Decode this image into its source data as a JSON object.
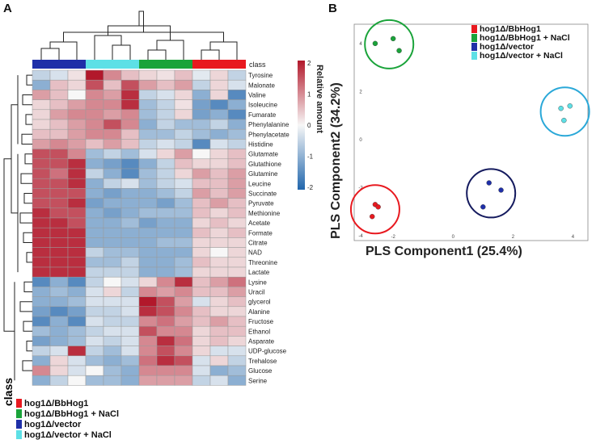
{
  "panels": {
    "a": "A",
    "b": "B"
  },
  "heatmap": {
    "class_row_label": "class",
    "colorbar": {
      "title": "Relative amount",
      "ticks": [
        "2",
        "1",
        "0",
        "-1",
        "-2"
      ]
    },
    "column_classes": [
      "hog1Δ/vector",
      "hog1Δ/vector",
      "hog1Δ/vector",
      "hog1Δ/vector + NaCl",
      "hog1Δ/vector + NaCl",
      "hog1Δ/vector + NaCl",
      "hog1Δ/BbHog1 + NaCl",
      "hog1Δ/BbHog1 + NaCl",
      "hog1Δ/BbHog1 + NaCl",
      "hog1Δ/BbHog1",
      "hog1Δ/BbHog1",
      "hog1Δ/BbHog1"
    ],
    "class_legend_title": "class"
  },
  "classes": [
    {
      "name": "hog1Δ/BbHog1",
      "color": "#e8191f"
    },
    {
      "name": "hog1Δ/BbHog1 + NaCl",
      "color": "#1aa33a"
    },
    {
      "name": "hog1Δ/vector",
      "color": "#1f2fa8"
    },
    {
      "name": "hog1Δ/vector + NaCl",
      "color": "#5de0e6"
    }
  ],
  "chart_data": [
    {
      "type": "heatmap",
      "title": "",
      "value_range": [
        -2,
        2
      ],
      "rows": [
        "Tyrosine",
        "Malonate",
        "Valine",
        "Isoleucine",
        "Fumarate",
        "Phenylalanine",
        "Phenylacetate",
        "Histidine",
        "Glutamate",
        "Glutathione",
        "Glutamine",
        "Leucine",
        "Succinate",
        "Pyruvate",
        "Methionine",
        "Acetate",
        "Formate",
        "Citrate",
        "NAD",
        "Threonine",
        "Lactate",
        "Lysine",
        "Uracil",
        "glycerol",
        "Alanine",
        "Fructose",
        "Ethanol",
        "Asparate",
        "UDP-glucose",
        "Trehalose",
        "Glucose",
        "Serine"
      ],
      "values": [
        [
          -0.5,
          -0.3,
          0.2,
          2.0,
          1.0,
          0.5,
          0.3,
          0.2,
          0.5,
          -0.2,
          0.3,
          -0.5
        ],
        [
          -1.0,
          0.5,
          0.3,
          1.5,
          0.5,
          1.5,
          0.8,
          0.5,
          0.8,
          -0.5,
          0.3,
          -0.3
        ],
        [
          0.8,
          0.5,
          0.0,
          1.0,
          0.8,
          1.8,
          -0.5,
          -0.3,
          0.3,
          -1.0,
          0.3,
          -1.5
        ],
        [
          0.3,
          0.5,
          0.8,
          1.0,
          1.0,
          1.8,
          -0.8,
          -0.5,
          0.2,
          -1.2,
          -1.5,
          -1.0
        ],
        [
          0.3,
          0.8,
          1.0,
          1.0,
          0.8,
          1.0,
          -0.8,
          -0.5,
          0.3,
          -1.2,
          -1.0,
          -1.5
        ],
        [
          0.3,
          0.5,
          0.8,
          1.0,
          1.5,
          1.0,
          -1.0,
          -0.5,
          -0.8,
          -0.8,
          -0.5,
          -1.0
        ],
        [
          0.5,
          0.5,
          0.8,
          1.0,
          1.0,
          0.5,
          -0.8,
          -0.8,
          -0.5,
          -0.8,
          -1.0,
          -0.8
        ],
        [
          0.8,
          1.0,
          0.8,
          0.5,
          0.8,
          0.5,
          -0.5,
          -0.3,
          -0.5,
          -1.5,
          -0.3,
          -0.5
        ],
        [
          1.5,
          1.5,
          1.0,
          -0.8,
          -0.5,
          -0.8,
          -0.3,
          0.3,
          0.8,
          0.0,
          0.3,
          0.5
        ],
        [
          1.5,
          1.5,
          1.8,
          -1.0,
          -1.2,
          -1.5,
          -1.0,
          -0.5,
          0.5,
          0.3,
          0.3,
          0.5
        ],
        [
          1.5,
          1.2,
          1.8,
          -0.5,
          -1.0,
          -1.5,
          -0.8,
          -0.5,
          0.3,
          0.8,
          0.5,
          0.8
        ],
        [
          1.5,
          1.5,
          1.8,
          -1.0,
          -0.5,
          -0.3,
          -0.8,
          -0.5,
          -0.3,
          0.5,
          0.5,
          0.8
        ],
        [
          1.5,
          1.5,
          1.5,
          -1.0,
          -1.2,
          -1.0,
          -1.0,
          -0.8,
          -0.5,
          0.8,
          0.5,
          0.8
        ],
        [
          1.5,
          1.5,
          1.8,
          -1.2,
          -1.0,
          -1.0,
          -1.0,
          -1.2,
          -0.8,
          0.5,
          0.8,
          0.5
        ],
        [
          1.8,
          1.5,
          1.5,
          -1.0,
          -1.2,
          -1.0,
          -0.8,
          -0.8,
          -0.8,
          0.5,
          0.3,
          0.5
        ],
        [
          1.8,
          1.8,
          1.5,
          -1.0,
          -1.0,
          -0.8,
          -1.2,
          -1.0,
          -1.0,
          0.3,
          0.5,
          0.3
        ],
        [
          1.8,
          1.8,
          1.8,
          -1.0,
          -1.0,
          -1.0,
          -1.0,
          -1.0,
          -1.0,
          0.5,
          0.3,
          0.5
        ],
        [
          1.8,
          1.8,
          1.8,
          -1.0,
          -1.0,
          -1.0,
          -1.0,
          -0.8,
          -0.8,
          0.3,
          0.3,
          0.3
        ],
        [
          1.8,
          1.8,
          1.8,
          -0.5,
          -0.8,
          -0.8,
          -1.0,
          -1.0,
          -1.0,
          0.3,
          0.0,
          0.3
        ],
        [
          1.8,
          1.8,
          1.8,
          -0.8,
          -0.8,
          -0.5,
          -1.0,
          -1.0,
          -0.8,
          0.5,
          0.3,
          0.3
        ],
        [
          1.8,
          1.8,
          1.8,
          -0.5,
          -0.5,
          -0.5,
          -1.0,
          -1.0,
          -0.8,
          0.3,
          0.3,
          0.3
        ],
        [
          -1.5,
          -1.0,
          -1.5,
          -0.5,
          0.0,
          -0.3,
          0.3,
          1.0,
          1.8,
          0.5,
          0.8,
          1.2
        ],
        [
          -1.0,
          -0.8,
          -1.0,
          -0.3,
          0.3,
          -0.5,
          1.0,
          0.8,
          1.0,
          0.5,
          0.5,
          0.8
        ],
        [
          -1.0,
          -1.0,
          -0.8,
          -0.3,
          -0.3,
          -0.3,
          2.0,
          1.5,
          0.8,
          -0.3,
          0.3,
          0.5
        ],
        [
          -1.2,
          -1.5,
          -1.2,
          -0.5,
          -0.5,
          -0.3,
          1.8,
          1.5,
          1.0,
          0.5,
          0.3,
          0.3
        ],
        [
          -1.5,
          -1.0,
          -1.5,
          -0.3,
          -0.5,
          -0.5,
          1.0,
          1.2,
          0.8,
          0.5,
          0.8,
          0.5
        ],
        [
          -0.8,
          -1.0,
          -0.8,
          -0.5,
          -0.3,
          -0.3,
          1.5,
          1.0,
          1.0,
          0.3,
          0.5,
          0.5
        ],
        [
          -1.2,
          -1.0,
          -0.8,
          -0.3,
          -0.5,
          -0.3,
          1.0,
          1.8,
          1.2,
          0.3,
          0.5,
          0.3
        ],
        [
          -0.5,
          -0.3,
          1.8,
          -0.5,
          -0.8,
          -0.3,
          1.0,
          1.5,
          1.0,
          0.3,
          -0.3,
          -0.3
        ],
        [
          -1.0,
          0.3,
          -0.3,
          -0.8,
          -1.0,
          -0.8,
          1.2,
          1.8,
          1.5,
          -0.3,
          0.3,
          -0.5
        ],
        [
          1.0,
          0.3,
          -0.3,
          0.0,
          -0.8,
          -1.0,
          1.0,
          1.0,
          1.0,
          -0.3,
          -1.0,
          -0.8
        ],
        [
          -1.0,
          -0.5,
          0.0,
          -0.8,
          -0.8,
          -1.0,
          0.8,
          0.8,
          0.8,
          -0.5,
          -0.3,
          -1.0
        ]
      ]
    },
    {
      "type": "scatter",
      "title": "",
      "xlabel": "PLS Component1  (25.4%)",
      "ylabel": "PLS Component2  (34.2%)",
      "xlim": [
        -3.3,
        4.5
      ],
      "ylim": [
        -4.2,
        4.8
      ],
      "xticks": [
        "-2",
        "0",
        "2",
        "4"
      ],
      "yticks": [
        "4",
        "2",
        "0",
        "-2",
        "-4"
      ],
      "legend_position": "top-right",
      "series": [
        {
          "name": "hog1Δ/BbHog1",
          "points": [
            [
              -2.6,
              -2.7
            ],
            [
              -2.5,
              -2.8
            ],
            [
              -2.7,
              -3.2
            ]
          ]
        },
        {
          "name": "hog1Δ/BbHog1 + NaCl",
          "points": [
            [
              -2.6,
              4.0
            ],
            [
              -2.0,
              4.2
            ],
            [
              -1.8,
              3.7
            ]
          ]
        },
        {
          "name": "hog1Δ/vector",
          "points": [
            [
              1.2,
              -1.8
            ],
            [
              1.6,
              -2.1
            ],
            [
              1.0,
              -2.8
            ]
          ]
        },
        {
          "name": "hog1Δ/vector + NaCl",
          "points": [
            [
              3.6,
              1.3
            ],
            [
              3.9,
              1.4
            ],
            [
              3.7,
              0.8
            ]
          ]
        }
      ]
    }
  ]
}
